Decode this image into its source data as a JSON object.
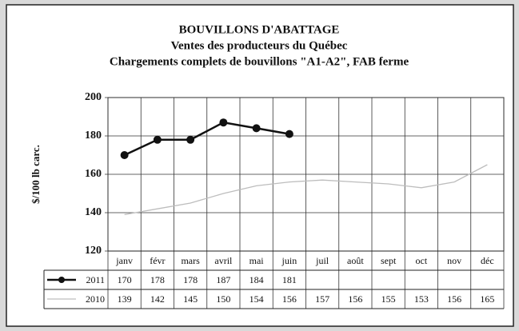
{
  "chart_data": {
    "type": "line",
    "title": "BOUVILLONS D'ABATTAGE",
    "subtitle": "Ventes des producteurs du Québec",
    "subtitle2": "Chargements complets de bouvillons \"A1-A2\", FAB ferme",
    "y_label": "$/100 lb carc.",
    "categories": [
      "janv",
      "févr",
      "mars",
      "avril",
      "mai",
      "juin",
      "juil",
      "août",
      "sept",
      "oct",
      "nov",
      "déc"
    ],
    "series": [
      {
        "name": "2011",
        "color": "#111111",
        "marker": true,
        "values": [
          170,
          178,
          178,
          187,
          184,
          181,
          null,
          null,
          null,
          null,
          null,
          null
        ]
      },
      {
        "name": "2010",
        "color": "#bdbdbd",
        "marker": false,
        "values": [
          139,
          142,
          145,
          150,
          154,
          156,
          157,
          156,
          155,
          153,
          156,
          165
        ]
      }
    ],
    "ylim": [
      120,
      200
    ],
    "yticks": [
      120,
      140,
      160,
      180,
      200
    ],
    "grid": true
  }
}
